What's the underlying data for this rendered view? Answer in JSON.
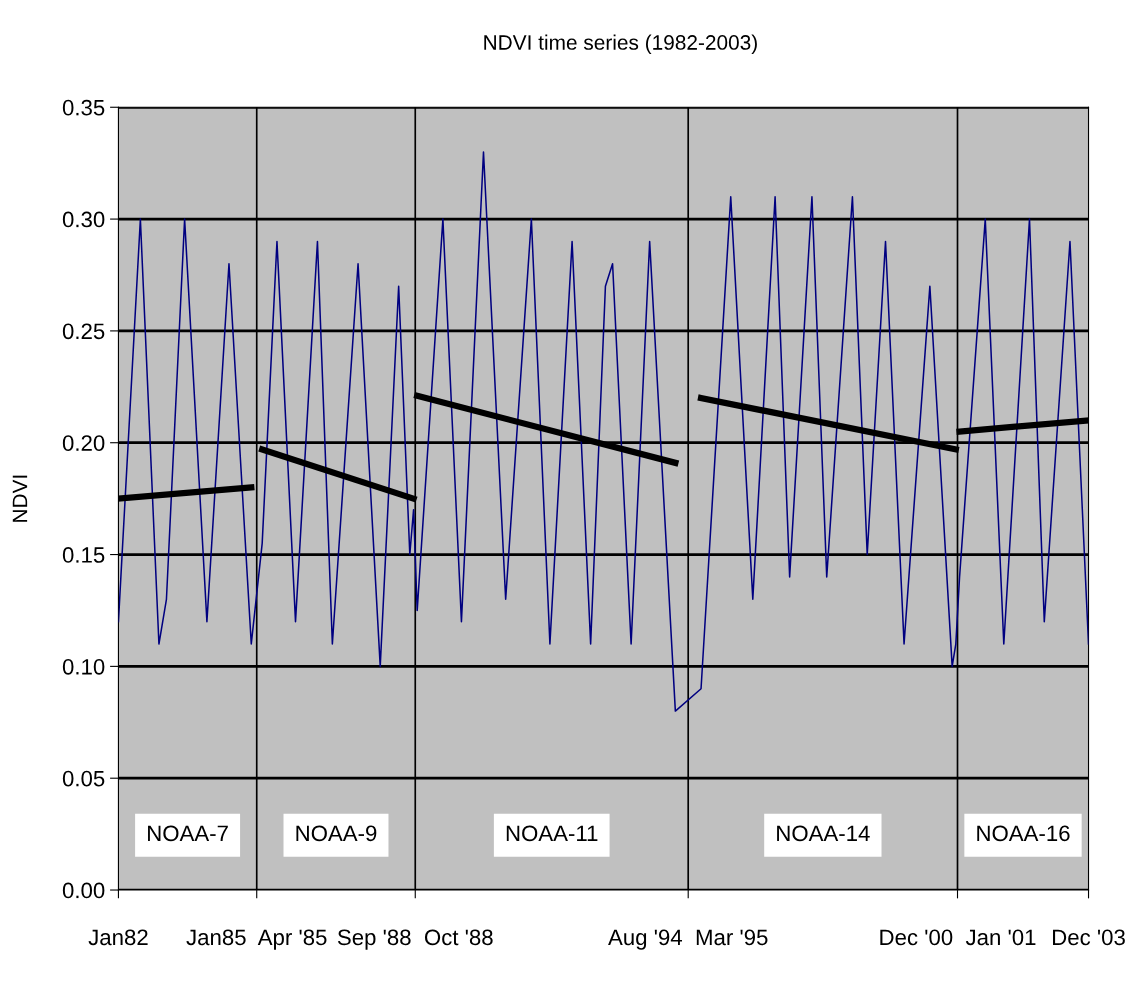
{
  "chart_data": {
    "type": "line",
    "title": "NDVI time series (1982-2003)",
    "ylabel": "NDVI",
    "x": [
      "1982-01",
      "1982-07",
      "1982-12",
      "1983-02",
      "1983-07",
      "1984-01",
      "1984-07",
      "1985-01",
      "1985-04",
      "1985-08",
      "1986-01",
      "1986-07",
      "1986-11",
      "1987-06",
      "1987-12",
      "1988-05",
      "1988-08",
      "1988-09",
      "1988-10",
      "1989-05",
      "1989-10",
      "1990-04",
      "1990-10",
      "1991-05",
      "1991-10",
      "1992-04",
      "1992-09",
      "1993-01",
      "1993-03",
      "1993-08",
      "1994-01",
      "1994-08",
      "1995-03",
      "1995-11",
      "1996-05",
      "1996-11",
      "1997-03",
      "1997-09",
      "1998-01",
      "1998-08",
      "1998-12",
      "1999-05",
      "1999-10",
      "2000-05",
      "2000-11",
      "2000-12",
      "2001-01",
      "2001-08",
      "2002-01",
      "2002-08",
      "2002-12",
      "2003-07",
      "2003-12"
    ],
    "series": [
      {
        "color": "#000080",
        "values": [
          0.12,
          0.3,
          0.11,
          0.13,
          0.3,
          0.12,
          0.28,
          0.11,
          0.155,
          0.29,
          0.12,
          0.29,
          0.11,
          0.28,
          0.1,
          0.27,
          0.15,
          0.17,
          0.125,
          0.3,
          0.12,
          0.33,
          0.13,
          0.3,
          0.11,
          0.29,
          0.11,
          0.27,
          0.28,
          0.11,
          0.29,
          0.08,
          0.09,
          0.31,
          0.13,
          0.31,
          0.14,
          0.31,
          0.14,
          0.31,
          0.15,
          0.29,
          0.11,
          0.27,
          0.1,
          0.11,
          0.14,
          0.3,
          0.11,
          0.3,
          0.12,
          0.29,
          0.11
        ]
      },
      {
        "type": "line",
        "color": "#000000",
        "x": [
          "1982-01",
          "1985-01"
        ],
        "values": [
          0.175,
          0.18
        ]
      },
      {
        "type": "line",
        "color": "#000000",
        "x": [
          "1985-04",
          "1988-09"
        ],
        "values": [
          0.197,
          0.175
        ]
      },
      {
        "type": "line",
        "color": "#000000",
        "x": [
          "1988-10",
          "1994-08"
        ],
        "values": [
          0.221,
          0.191
        ]
      },
      {
        "type": "line",
        "color": "#000000",
        "x": [
          "1995-03",
          "2000-12"
        ],
        "values": [
          0.22,
          0.197
        ]
      },
      {
        "type": "line",
        "color": "#000000",
        "x": [
          "2001-01",
          "2003-12"
        ],
        "values": [
          0.205,
          0.21
        ]
      }
    ],
    "xlim": [
      "1982-01",
      "2003-12"
    ],
    "xticks": [
      {
        "value": "1982-01",
        "label": "Jan82"
      },
      {
        "value": "1985-02-15",
        "label": "Jan85  Apr '85"
      },
      {
        "value": "1988-09-15",
        "label": "Sep '88  Oct '88"
      },
      {
        "value": "1994-11-15",
        "label": "Aug '94  Mar '95"
      },
      {
        "value": "2000-12-15",
        "label": "Dec '00  Jan '01"
      },
      {
        "value": "2003-12",
        "label": "Dec '03"
      }
    ],
    "ylim": [
      0,
      0.35
    ],
    "yticks": [
      {
        "value": 0,
        "label": "0.00"
      },
      {
        "value": 0.05,
        "label": "0.05"
      },
      {
        "value": 0.1,
        "label": "0.10"
      },
      {
        "value": 0.15,
        "label": "0.15"
      },
      {
        "value": 0.2,
        "label": "0.20"
      },
      {
        "value": 0.25,
        "label": "0.25"
      },
      {
        "value": 0.3,
        "label": "0.30"
      },
      {
        "value": 0.35,
        "label": "0.35"
      }
    ],
    "ref_lines": [
      {
        "axis": "x",
        "value": "1985-02-15",
        "color": "#000000"
      },
      {
        "axis": "x",
        "value": "1988-09-15",
        "color": "#000000"
      },
      {
        "axis": "x",
        "value": "1994-11-15",
        "color": "#000000"
      },
      {
        "axis": "x",
        "value": "2000-12-15",
        "color": "#000000"
      }
    ],
    "annotations": [
      "NOAA-7",
      "NOAA-9",
      "NOAA-11",
      "NOAA-14",
      "NOAA-16"
    ],
    "grid": "y",
    "marker": "none",
    "line_style": "solid"
  }
}
